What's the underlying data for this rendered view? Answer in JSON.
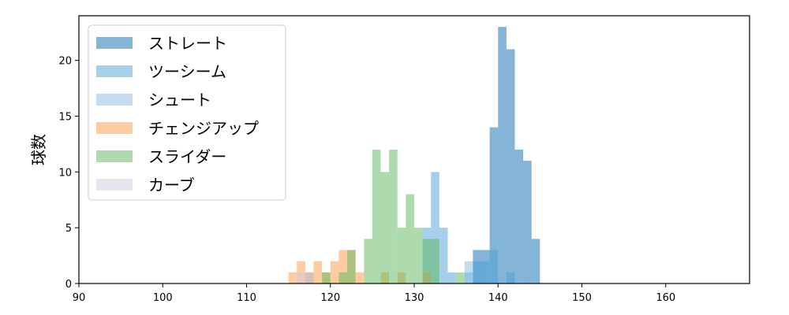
{
  "chart_data": {
    "type": "histogram",
    "title": "",
    "xlabel": "",
    "ylabel": "球数",
    "xlim": [
      90,
      170
    ],
    "ylim": [
      0,
      24
    ],
    "xticks": [
      90,
      100,
      110,
      120,
      130,
      140,
      150,
      160
    ],
    "yticks": [
      0,
      5,
      10,
      15,
      20
    ],
    "bin_width": 1,
    "grid": false,
    "legend_position": "top-left",
    "series": [
      {
        "name": "ストレート",
        "color": "#1f77b4",
        "opacity": 0.55,
        "bins": [
          [
            137,
            3
          ],
          [
            138,
            3
          ],
          [
            139,
            14
          ],
          [
            140,
            23
          ],
          [
            141,
            21
          ],
          [
            142,
            12
          ],
          [
            143,
            11
          ],
          [
            144,
            4
          ]
        ]
      },
      {
        "name": "ツーシーム",
        "color": "#4c9fd6",
        "opacity": 0.5,
        "bins": [
          [
            131,
            5
          ],
          [
            132,
            10
          ],
          [
            133,
            5
          ],
          [
            134,
            1
          ],
          [
            136,
            1
          ],
          [
            137,
            2
          ],
          [
            138,
            2
          ],
          [
            139,
            3
          ],
          [
            141,
            1
          ]
        ]
      },
      {
        "name": "シュート",
        "color": "#8fbfe3",
        "opacity": 0.55,
        "bins": [
          [
            117,
            1
          ],
          [
            136,
            2
          ]
        ]
      },
      {
        "name": "チェンジアップ",
        "color": "#ff9a45",
        "opacity": 0.5,
        "bins": [
          [
            115,
            1
          ],
          [
            116,
            2
          ],
          [
            117,
            1
          ],
          [
            118,
            2
          ],
          [
            119,
            1
          ],
          [
            120,
            2
          ],
          [
            121,
            3
          ],
          [
            122,
            3
          ],
          [
            123,
            1
          ],
          [
            126,
            1
          ],
          [
            128,
            1
          ],
          [
            131,
            1
          ]
        ]
      },
      {
        "name": "スライダー",
        "color": "#5cb85c",
        "opacity": 0.5,
        "bins": [
          [
            119,
            1
          ],
          [
            121,
            1
          ],
          [
            122,
            3
          ],
          [
            124,
            4
          ],
          [
            125,
            12
          ],
          [
            126,
            10
          ],
          [
            127,
            12
          ],
          [
            128,
            5
          ],
          [
            129,
            8
          ],
          [
            130,
            5
          ],
          [
            131,
            4
          ],
          [
            132,
            4
          ],
          [
            135,
            1
          ]
        ]
      },
      {
        "name": "カーブ",
        "color": "#c8c8e0",
        "opacity": 0.45,
        "bins": [
          [
            116,
            1
          ],
          [
            117,
            1
          ]
        ]
      }
    ]
  }
}
